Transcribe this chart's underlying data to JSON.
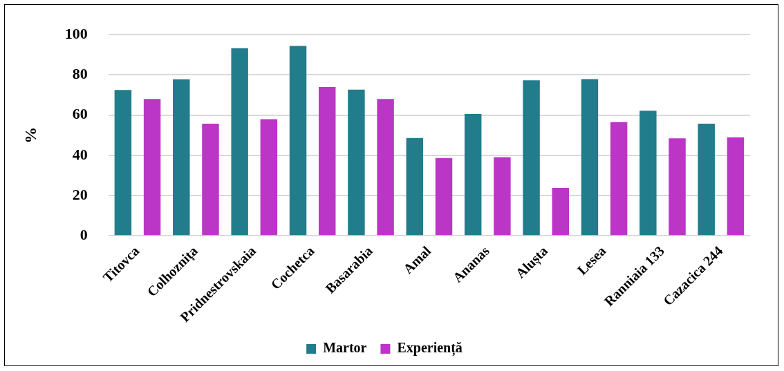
{
  "chart_data": {
    "type": "bar",
    "ylabel": "%",
    "categories": [
      "Titovca",
      "Colhoznița",
      "Pridnestrovskaia",
      "Cochetca",
      "Basarabia",
      "Amal",
      "Ananas",
      "Alușta",
      "Lesea",
      "Ranniaia 133",
      "Cazacica 244"
    ],
    "series": [
      {
        "name": "Martor",
        "color": "#217d8b",
        "values": [
          72.5,
          77.8,
          93.3,
          94.4,
          72.7,
          48.6,
          60.6,
          77.3,
          77.9,
          62.2,
          55.8
        ]
      },
      {
        "name": "Experiență",
        "color": "#bb36c7",
        "values": [
          68,
          55.8,
          58,
          74,
          68,
          38.7,
          39.1,
          23.8,
          56.5,
          48.5,
          49
        ]
      }
    ],
    "ylim": [
      0,
      100
    ],
    "yticks": [
      0,
      20,
      40,
      60,
      80,
      100
    ],
    "grid": "y",
    "legend": "bottom"
  }
}
